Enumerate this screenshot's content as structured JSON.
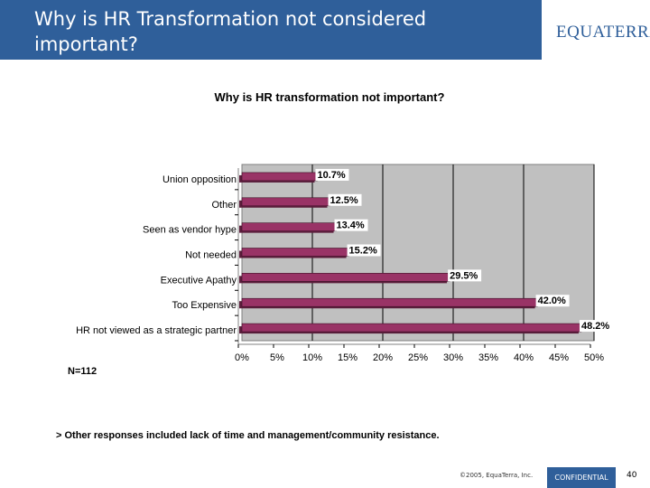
{
  "slide": {
    "title": "Why is HR Transformation not considered important?",
    "logo_text": "EQUATERRA",
    "n_label": "N=112",
    "note": "> Other responses included lack of time and management/community resistance.",
    "copyright": "©2005, EquaTerra, Inc.",
    "confidential": "CONFIDENTIAL",
    "page_number": "40"
  },
  "colors": {
    "header_bg": "#2f5f9a",
    "plot_bg": "#c0c0c0",
    "bar_fill": "#993366",
    "bar_label_bg": "#ffffff"
  },
  "chart_data": {
    "type": "bar",
    "orientation": "horizontal",
    "title": "Why is HR transformation not important?",
    "categories": [
      "Union opposition",
      "Other",
      "Seen as vendor hype",
      "Not needed",
      "Executive Apathy",
      "Too Expensive",
      "HR not viewed as a strategic partner"
    ],
    "values": [
      10.7,
      12.5,
      13.4,
      15.2,
      29.5,
      42.0,
      48.2
    ],
    "value_labels": [
      "10.7%",
      "12.5%",
      "13.4%",
      "15.2%",
      "29.5%",
      "42.0%",
      "48.2%"
    ],
    "x_ticks": [
      0,
      5,
      10,
      15,
      20,
      25,
      30,
      35,
      40,
      45,
      50
    ],
    "x_tick_labels": [
      "0%",
      "5%",
      "10%",
      "15%",
      "20%",
      "25%",
      "30%",
      "35%",
      "40%",
      "45%",
      "50%"
    ],
    "xlim": [
      0,
      50
    ],
    "gridlines_major": [
      10,
      20,
      30,
      40,
      50
    ],
    "xlabel": "",
    "ylabel": "",
    "legend": "none"
  }
}
